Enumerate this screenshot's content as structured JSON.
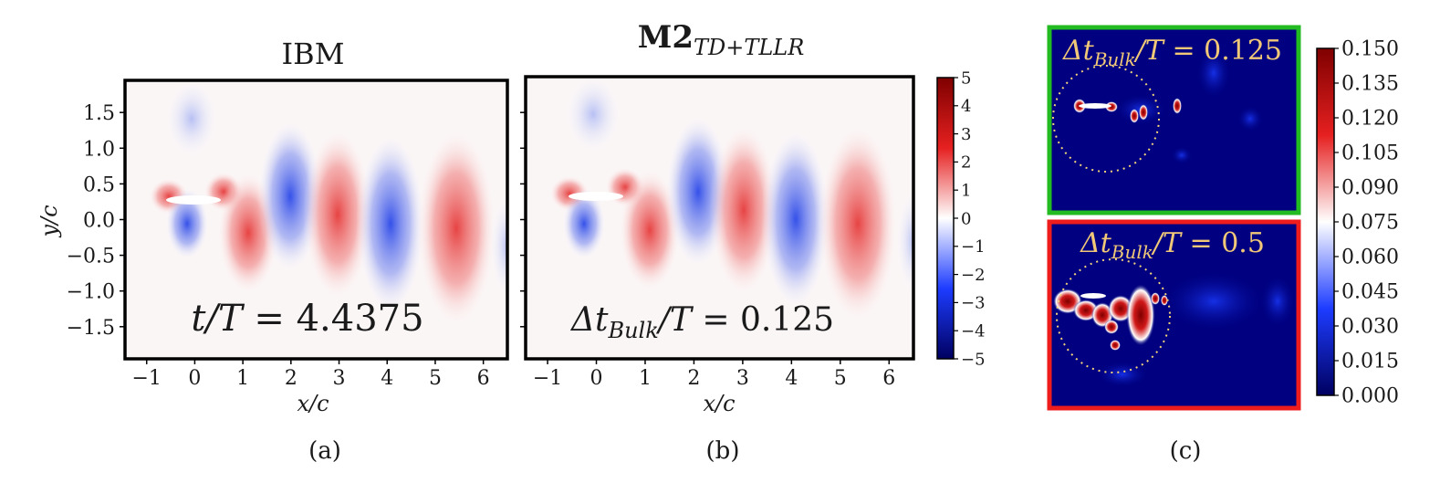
{
  "colors": {
    "blue_dark": "#000060",
    "blue": "#1d3cff",
    "white": "#ffffff",
    "red": "#e62020",
    "red_dark": "#7f0000",
    "frame_green": "#22bb22",
    "frame_red": "#ee1c1c",
    "circle": "#f2d37a",
    "overlay_text": "#f0c878"
  },
  "panels": {
    "a": {
      "title": "IBM",
      "caption": "(a)",
      "annotation": {
        "pre": "t/T",
        "eq": " = 4.4375"
      },
      "xlabel": "x/c",
      "ylabel": "y/c"
    },
    "b": {
      "title_bold": "M2",
      "title_sub": "TD+TLLR",
      "caption": "(b)",
      "annotation": {
        "pre": "Δt",
        "sub": "Bulk",
        "post": "/T",
        "eq": " = 0.125"
      },
      "xlabel": "x/c"
    },
    "c": {
      "caption": "(c)",
      "top_label": {
        "pre": "Δt",
        "sub": "Bulk",
        "post": "/T",
        "eq": " = 0.125"
      },
      "bottom_label": {
        "pre": "Δt",
        "sub": "Bulk",
        "post": "/T",
        "eq": " = 0.5"
      }
    }
  },
  "chart_data": [
    {
      "type": "heatmap",
      "id": "panel-a",
      "title": "IBM",
      "xlabel": "x/c",
      "ylabel": "y/c",
      "xlim": [
        -1.45,
        6.5
      ],
      "ylim": [
        -1.95,
        1.95
      ],
      "xticks": [
        -1,
        0,
        1,
        2,
        3,
        4,
        5,
        6
      ],
      "yticks": [
        -1.5,
        -1.0,
        -0.5,
        0.0,
        0.5,
        1.0,
        1.5
      ],
      "xtick_labels": [
        "−1",
        "0",
        "1",
        "2",
        "3",
        "4",
        "5",
        "6"
      ],
      "ytick_labels": [
        "−1.5",
        "−1.0",
        "−0.5",
        "0.0",
        "0.5",
        "1.0",
        "1.5"
      ],
      "field": "vorticity wake",
      "vortices": [
        {
          "x": 1.2,
          "y": -0.2,
          "sign": 1
        },
        {
          "x": 2.2,
          "y": 0.3,
          "sign": -1
        },
        {
          "x": 3.2,
          "y": -0.1,
          "sign": 1
        },
        {
          "x": 4.2,
          "y": -0.2,
          "sign": -1
        },
        {
          "x": 5.4,
          "y": -0.2,
          "sign": 1
        }
      ]
    },
    {
      "type": "heatmap",
      "id": "panel-b",
      "title": "M2 TD+TLLR",
      "xlabel": "x/c",
      "xlim": [
        -1.45,
        6.5
      ],
      "ylim": [
        -1.95,
        1.95
      ],
      "xticks": [
        -1,
        0,
        1,
        2,
        3,
        4,
        5,
        6
      ],
      "xtick_labels": [
        "−1",
        "0",
        "1",
        "2",
        "3",
        "4",
        "5",
        "6"
      ],
      "colorbar": {
        "min": -5,
        "max": 5,
        "ticks": [
          5,
          4,
          3,
          2,
          1,
          0,
          -1,
          -2,
          -3,
          -4,
          -5
        ],
        "tick_labels": [
          "5",
          "4",
          "3",
          "2",
          "1",
          "0",
          "−1",
          "−2",
          "−3",
          "−4",
          "−5"
        ]
      }
    },
    {
      "type": "heatmap",
      "id": "panel-c",
      "colorbar": {
        "min": 0.0,
        "max": 0.15,
        "ticks": [
          0.15,
          0.135,
          0.12,
          0.105,
          0.09,
          0.075,
          0.06,
          0.045,
          0.03,
          0.015,
          0.0
        ],
        "tick_labels": [
          "0.150",
          "0.135",
          "0.120",
          "0.105",
          "0.090",
          "0.075",
          "0.060",
          "0.045",
          "0.030",
          "0.015",
          "0.000"
        ]
      }
    }
  ]
}
